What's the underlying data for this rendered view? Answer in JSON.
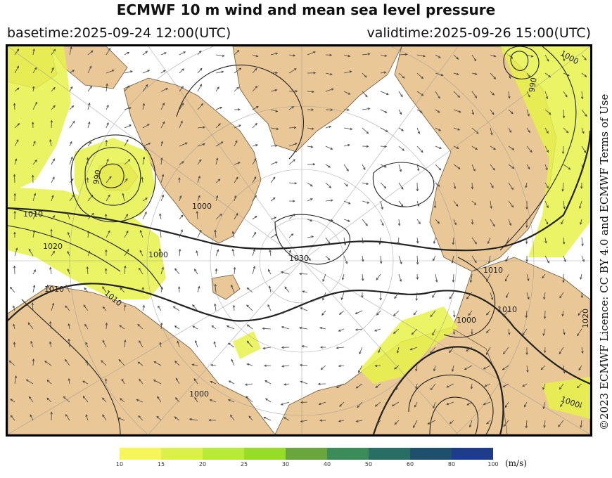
{
  "header": {
    "title": "ECMWF 10 m wind and mean sea level pressure",
    "basetime": "basetime:2025-09-24 12:00(UTC)",
    "validtime": "validtime:2025-09-26 15:00(UTC)"
  },
  "licence": "©2023 ECMWF Licence: CC BY 4.0 and ECMWF Terms of Use",
  "colorbar": {
    "unit": "(m/s)",
    "ticks": [
      "10",
      "15",
      "20",
      "25",
      "30",
      "40",
      "50",
      "60",
      "80",
      "100"
    ],
    "colors": [
      "#f6f65a",
      "#dcf04a",
      "#b8ea3a",
      "#96dc28",
      "#6aa63c",
      "#3c8c5a",
      "#286e64",
      "#1e506e",
      "#1e3c8c",
      "#2832aa"
    ]
  },
  "map": {
    "land_color": "#e9c796",
    "sea_color": "#ffffff",
    "isobar_labels": [
      "1000",
      "990",
      "1010",
      "1020",
      "1000",
      "1010",
      "1030",
      "1010",
      "1000",
      "1010",
      "1000",
      "1000",
      "990",
      "1020",
      "1010",
      "1000"
    ]
  }
}
